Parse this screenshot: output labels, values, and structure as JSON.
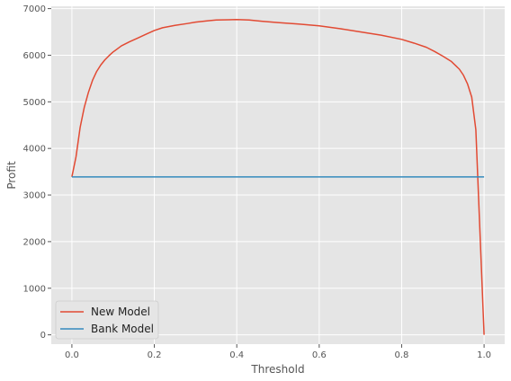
{
  "chart_data": {
    "type": "line",
    "xlabel": "Threshold",
    "ylabel": "Profit",
    "xlim": [
      -0.05,
      1.05
    ],
    "ylim": [
      -200,
      7050
    ],
    "xticks": [
      0.0,
      0.2,
      0.4,
      0.6,
      0.8,
      1.0
    ],
    "xtick_labels": [
      "0.0",
      "0.2",
      "0.4",
      "0.6",
      "0.8",
      "1.0"
    ],
    "yticks": [
      0,
      1000,
      2000,
      3000,
      4000,
      5000,
      6000,
      7000
    ],
    "ytick_labels": [
      "0",
      "1000",
      "2000",
      "3000",
      "4000",
      "5000",
      "6000",
      "7000"
    ],
    "grid": true,
    "legend_position": "lower-left",
    "series": [
      {
        "name": "New Model",
        "color": "#E24A33",
        "points": [
          [
            0.0,
            3390
          ],
          [
            0.01,
            3820
          ],
          [
            0.02,
            4450
          ],
          [
            0.03,
            4880
          ],
          [
            0.04,
            5200
          ],
          [
            0.05,
            5460
          ],
          [
            0.06,
            5650
          ],
          [
            0.07,
            5790
          ],
          [
            0.08,
            5900
          ],
          [
            0.09,
            5990
          ],
          [
            0.1,
            6070
          ],
          [
            0.12,
            6200
          ],
          [
            0.14,
            6290
          ],
          [
            0.16,
            6370
          ],
          [
            0.18,
            6450
          ],
          [
            0.2,
            6530
          ],
          [
            0.22,
            6590
          ],
          [
            0.25,
            6640
          ],
          [
            0.28,
            6680
          ],
          [
            0.3,
            6710
          ],
          [
            0.33,
            6740
          ],
          [
            0.35,
            6755
          ],
          [
            0.38,
            6760
          ],
          [
            0.4,
            6765
          ],
          [
            0.43,
            6755
          ],
          [
            0.46,
            6730
          ],
          [
            0.5,
            6700
          ],
          [
            0.55,
            6670
          ],
          [
            0.6,
            6630
          ],
          [
            0.65,
            6570
          ],
          [
            0.7,
            6500
          ],
          [
            0.75,
            6430
          ],
          [
            0.8,
            6340
          ],
          [
            0.83,
            6260
          ],
          [
            0.86,
            6170
          ],
          [
            0.88,
            6080
          ],
          [
            0.9,
            5980
          ],
          [
            0.92,
            5870
          ],
          [
            0.94,
            5700
          ],
          [
            0.95,
            5570
          ],
          [
            0.96,
            5380
          ],
          [
            0.97,
            5100
          ],
          [
            0.98,
            4400
          ],
          [
            0.99,
            2200
          ],
          [
            1.0,
            0
          ]
        ]
      },
      {
        "name": "Bank Model",
        "color": "#348ABD",
        "points": [
          [
            0.0,
            3390
          ],
          [
            1.0,
            3390
          ]
        ]
      }
    ]
  }
}
